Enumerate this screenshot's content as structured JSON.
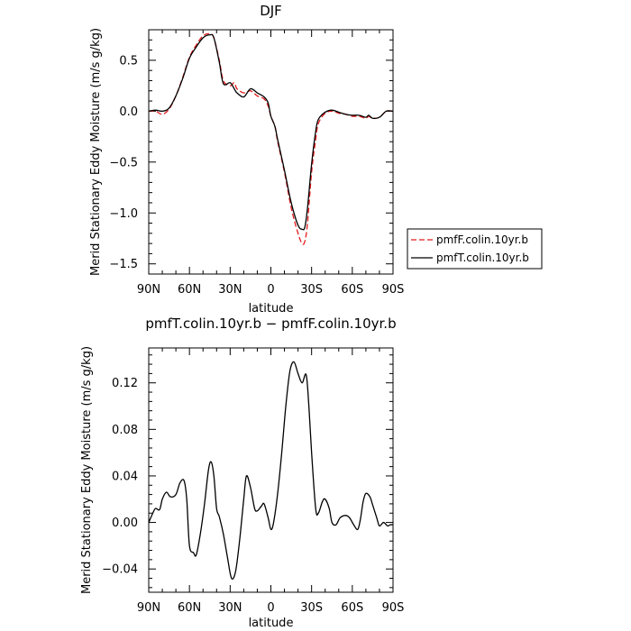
{
  "chart_data": [
    {
      "type": "line",
      "title": "DJF",
      "xlabel": "latitude",
      "ylabel": "Merid Stationary Eddy Moisture (m/s g/kg)",
      "xlim": [
        90,
        -90
      ],
      "ylim": [
        -1.6,
        0.8
      ],
      "x_ticks": [
        90,
        60,
        30,
        0,
        -30,
        -60,
        -90
      ],
      "x_tick_labels": [
        "90N",
        "60N",
        "30N",
        "0",
        "30S",
        "60S",
        "90S"
      ],
      "y_ticks": [
        -1.5,
        -1.0,
        -0.5,
        0.0,
        0.5
      ],
      "y_tick_labels": [
        "−1.5",
        "−1.0",
        "−0.5",
        "0.0",
        "0.5"
      ],
      "legend": {
        "placement": "right",
        "entries": [
          "pmfF.colin.10yr.b",
          "pmfT.colin.10yr.b"
        ]
      },
      "grid": false,
      "series": [
        {
          "name": "pmfF.colin.10yr.b",
          "color": "#e41a1c",
          "dash": "dashed",
          "x": [
            90,
            85,
            80,
            75,
            70,
            65,
            60,
            55,
            50,
            45,
            42,
            38,
            35,
            30,
            27,
            25,
            20,
            15,
            10,
            5,
            2,
            0,
            -3,
            -5,
            -10,
            -15,
            -20,
            -23,
            -25,
            -27,
            -30,
            -33,
            -35,
            -40,
            -45,
            -50,
            -55,
            -60,
            -65,
            -70,
            -72,
            -75,
            -80,
            -85,
            -90
          ],
          "y": [
            0.0,
            0.0,
            -0.03,
            0.02,
            0.15,
            0.33,
            0.53,
            0.65,
            0.74,
            0.76,
            0.72,
            0.5,
            0.3,
            0.25,
            0.28,
            0.22,
            0.18,
            0.2,
            0.15,
            0.12,
            0.05,
            -0.05,
            -0.15,
            -0.3,
            -0.6,
            -0.95,
            -1.2,
            -1.3,
            -1.28,
            -1.1,
            -0.6,
            -0.28,
            -0.12,
            -0.02,
            0.0,
            -0.02,
            -0.03,
            -0.05,
            -0.05,
            -0.07,
            -0.05,
            -0.07,
            -0.06,
            0.0,
            0.0
          ]
        },
        {
          "name": "pmfT.colin.10yr.b",
          "color": "#000000",
          "dash": "solid",
          "x": [
            90,
            85,
            80,
            75,
            70,
            65,
            60,
            55,
            50,
            45,
            42,
            38,
            35,
            30,
            27,
            25,
            20,
            15,
            10,
            5,
            2,
            0,
            -3,
            -5,
            -10,
            -15,
            -20,
            -23,
            -25,
            -27,
            -30,
            -33,
            -35,
            -40,
            -45,
            -50,
            -55,
            -60,
            -65,
            -70,
            -72,
            -75,
            -80,
            -85,
            -90
          ],
          "y": [
            0.0,
            0.01,
            0.0,
            0.03,
            0.15,
            0.32,
            0.52,
            0.63,
            0.72,
            0.75,
            0.72,
            0.48,
            0.27,
            0.28,
            0.22,
            0.18,
            0.14,
            0.22,
            0.18,
            0.14,
            0.08,
            -0.05,
            -0.15,
            -0.28,
            -0.58,
            -0.9,
            -1.12,
            -1.16,
            -1.14,
            -0.95,
            -0.52,
            -0.2,
            -0.08,
            -0.01,
            0.01,
            -0.01,
            -0.03,
            -0.04,
            -0.04,
            -0.06,
            -0.04,
            -0.07,
            -0.06,
            0.0,
            0.0
          ]
        }
      ]
    },
    {
      "type": "line",
      "title": "pmfT.colin.10yr.b − pmfF.colin.10yr.b",
      "xlabel": "latitude",
      "ylabel": "Merid Stationary Eddy Moisture (m/s g/kg)",
      "xlim": [
        90,
        -90
      ],
      "ylim": [
        -0.06,
        0.15
      ],
      "x_ticks": [
        90,
        60,
        30,
        0,
        -30,
        -60,
        -90
      ],
      "x_tick_labels": [
        "90N",
        "60N",
        "30N",
        "0",
        "30S",
        "60S",
        "90S"
      ],
      "y_ticks": [
        -0.04,
        0.0,
        0.04,
        0.08,
        0.12
      ],
      "y_tick_labels": [
        "−0.04",
        "0.00",
        "0.04",
        "0.08",
        "0.12"
      ],
      "grid": false,
      "series": [
        {
          "color": "#000000",
          "dash": "solid",
          "x": [
            90,
            87,
            85,
            82,
            80,
            77,
            74,
            70,
            67,
            64,
            62,
            60,
            57,
            55,
            52,
            49,
            46,
            44,
            42,
            40,
            38,
            35,
            32,
            29,
            26,
            23,
            20,
            18,
            15,
            12,
            10,
            7,
            5,
            2,
            0,
            -2,
            -5,
            -8,
            -11,
            -14,
            -17,
            -20,
            -23,
            -26,
            -28,
            -30,
            -33,
            -35,
            -38,
            -40,
            -43,
            -45,
            -48,
            -51,
            -55,
            -58,
            -61,
            -64,
            -66,
            -68,
            -70,
            -73,
            -75,
            -78,
            -80,
            -83,
            -86,
            -88,
            -90
          ],
          "y": [
            0.0,
            0.008,
            0.012,
            0.011,
            0.02,
            0.026,
            0.022,
            0.024,
            0.034,
            0.036,
            0.02,
            -0.02,
            -0.026,
            -0.028,
            -0.01,
            0.015,
            0.045,
            0.052,
            0.04,
            0.012,
            0.005,
            -0.01,
            -0.03,
            -0.048,
            -0.042,
            -0.015,
            0.02,
            0.04,
            0.03,
            0.012,
            0.01,
            0.014,
            0.016,
            0.004,
            -0.006,
            0.0,
            0.025,
            0.06,
            0.1,
            0.13,
            0.138,
            0.128,
            0.12,
            0.127,
            0.1,
            0.06,
            0.012,
            0.008,
            0.018,
            0.02,
            0.012,
            0.0,
            -0.002,
            0.004,
            0.006,
            0.004,
            -0.002,
            -0.006,
            0.003,
            0.018,
            0.025,
            0.022,
            0.015,
            0.004,
            -0.003,
            0.0,
            -0.003,
            -0.002,
            -0.002
          ]
        }
      ]
    }
  ]
}
